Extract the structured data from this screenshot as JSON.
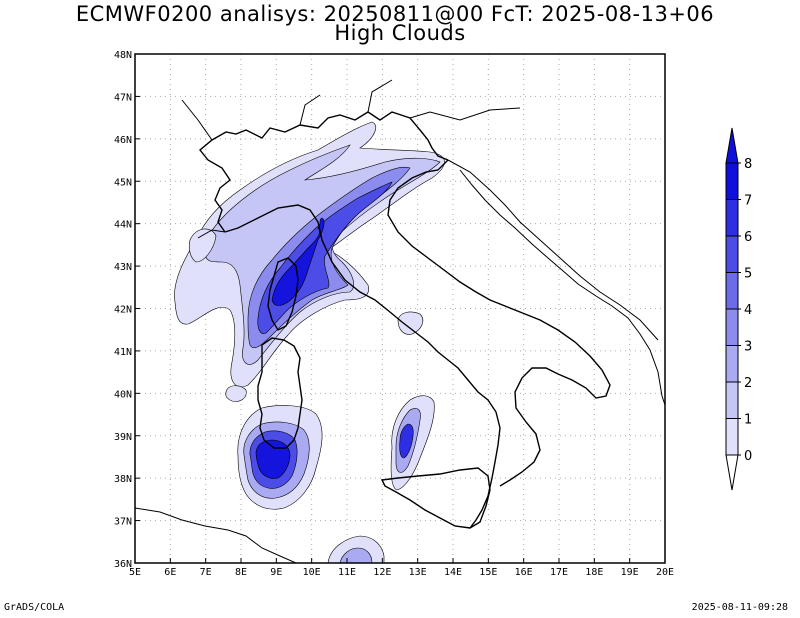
{
  "title_line1": "ECMWF0200 analisys: 20250811@00 FcT: 2025-08-13+06",
  "title_line2": "High Clouds",
  "footer_left": "GrADS/COLA",
  "footer_right": "2025-08-11-09:28",
  "map": {
    "lon_range": [
      5,
      20
    ],
    "lat_range": [
      36,
      48
    ],
    "lon_ticks": [
      "5E",
      "6E",
      "7E",
      "8E",
      "9E",
      "10E",
      "11E",
      "12E",
      "13E",
      "14E",
      "15E",
      "16E",
      "17E",
      "18E",
      "19E",
      "20E"
    ],
    "lat_ticks": [
      "36N",
      "37N",
      "38N",
      "39N",
      "40N",
      "41N",
      "42N",
      "43N",
      "44N",
      "45N",
      "46N",
      "47N",
      "48N"
    ],
    "grid": "dotted"
  },
  "colorbar": {
    "levels": [
      "0",
      "1",
      "2",
      "3",
      "4",
      "5",
      "6",
      "7",
      "8"
    ],
    "colors": [
      "#ffffff",
      "#e0e0fb",
      "#c6c6f6",
      "#aaaaf2",
      "#8c8cee",
      "#6c6cea",
      "#4c4ce6",
      "#2e2ee2",
      "#1010de"
    ]
  },
  "colors": {
    "cloud_low": "#e0e0fb",
    "cloud_mid": "#aaaaf2",
    "cloud_high": "#4c4ce6",
    "cloud_max": "#1414dc",
    "coast": "#000000",
    "grid": "#aaaaaa"
  }
}
